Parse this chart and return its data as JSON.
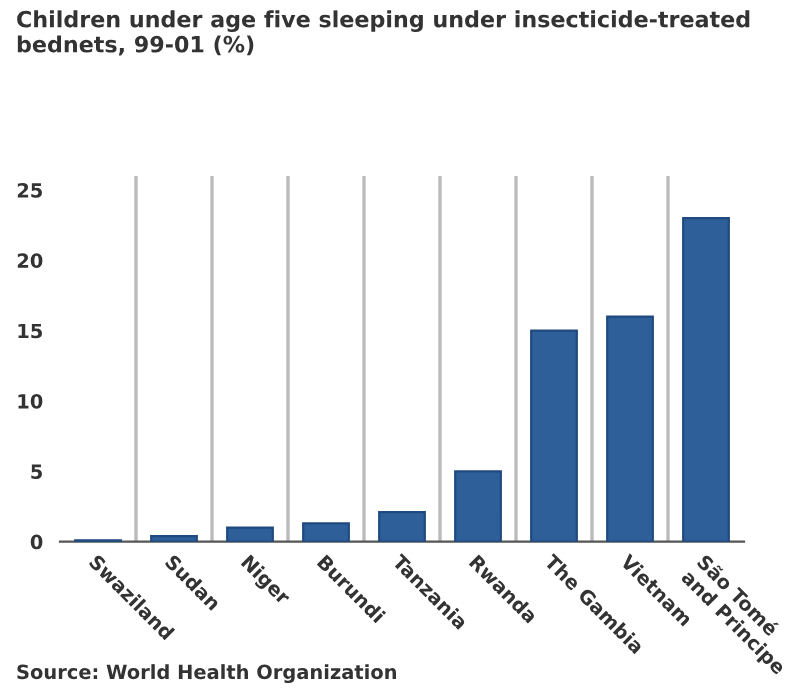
{
  "chart_data": {
    "type": "bar",
    "title": "Children under age five sleeping under insecticide-treated bednets, 99-01 (%)",
    "categories": [
      "Swaziland",
      "Sudan",
      "Niger",
      "Burundi",
      "Tanzania",
      "Rwanda",
      "The Gambia",
      "Vietnam",
      "São Tomé\nand Principe"
    ],
    "values": [
      0.1,
      0.4,
      1.0,
      1.3,
      2.1,
      5,
      15,
      16,
      23
    ],
    "color": "#2e5f98",
    "ylim": [
      0,
      26
    ],
    "yticks": [
      0,
      5,
      10,
      15,
      20,
      25
    ],
    "grid": "x",
    "annotations": [
      "Source: World Health Organization"
    ]
  }
}
